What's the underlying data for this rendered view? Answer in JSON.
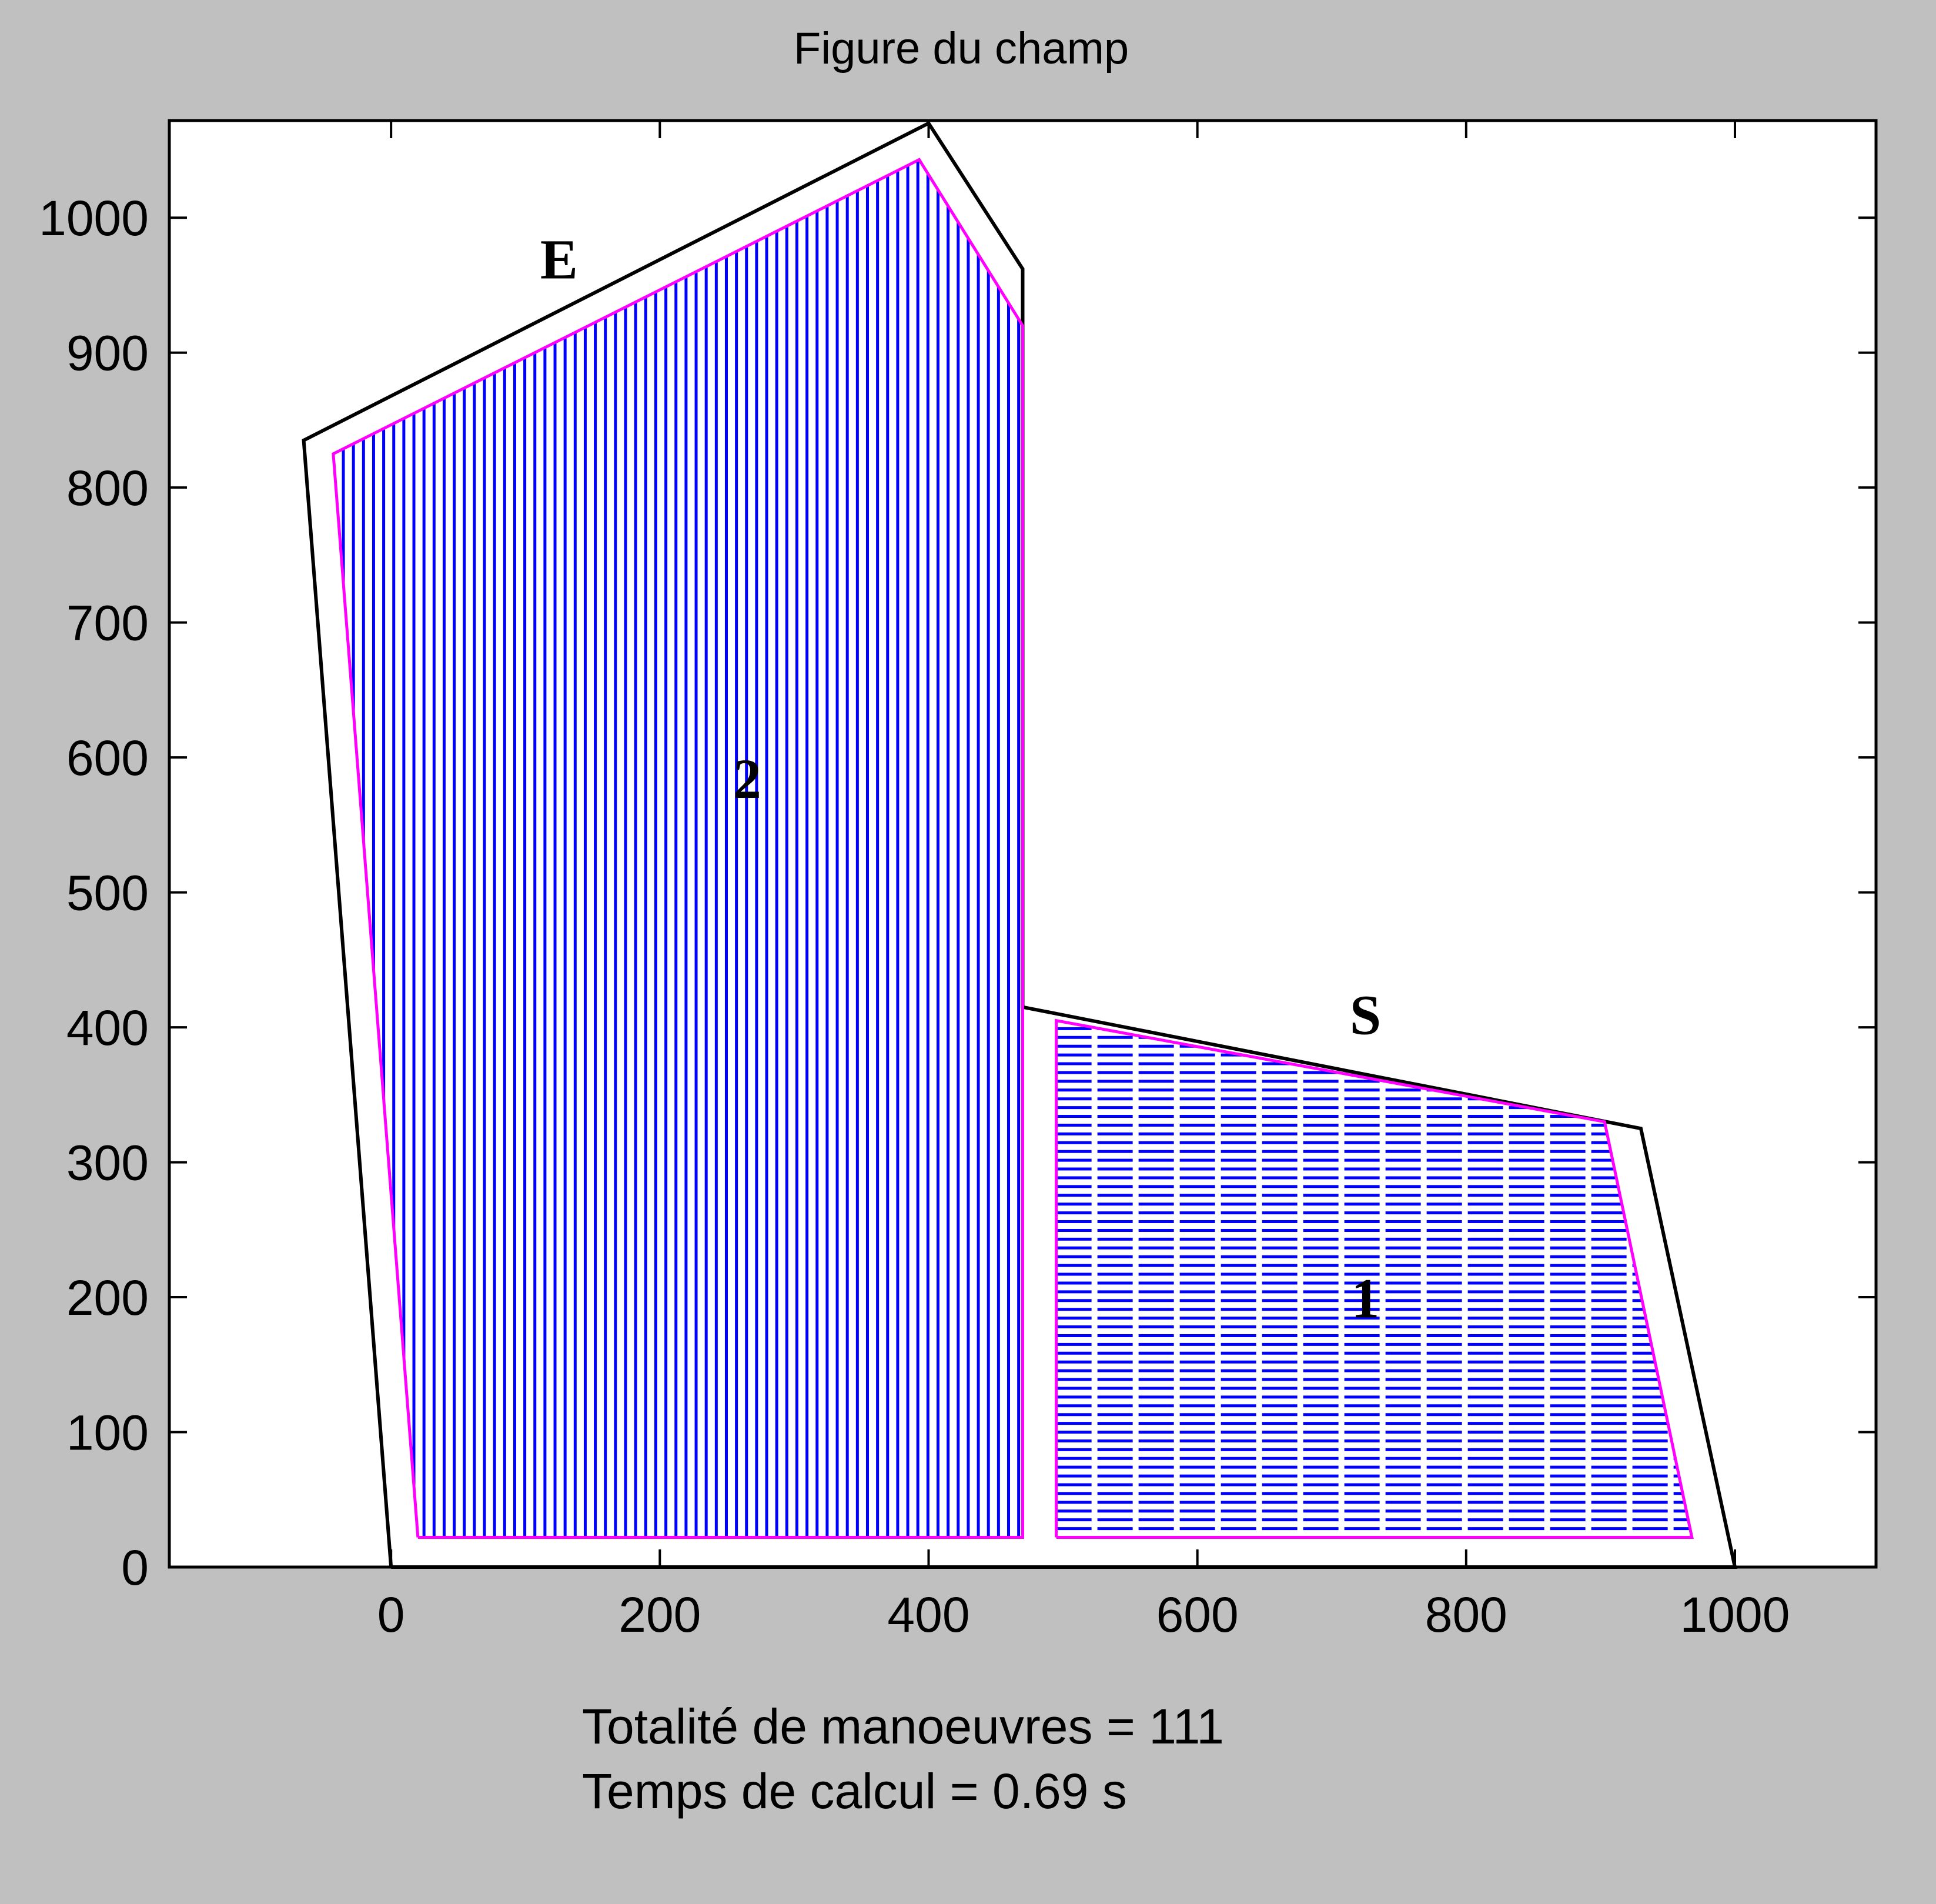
{
  "window": {
    "title": "Figure du champ"
  },
  "footer": {
    "total_maneuvers": "Totalité de manoeuvres = 111",
    "compute_time": "Temps de calcul = 0.69 s"
  },
  "colors": {
    "background": "#c0c0c0",
    "plot_bg": "#ffffff",
    "boundary": "#000000",
    "working_area": "#ff00ff",
    "passes": "#0000ff"
  },
  "chart_data": {
    "type": "line",
    "title": "Figure du champ",
    "xlabel": "",
    "ylabel": "",
    "xlim": [
      -165,
      1105
    ],
    "ylim": [
      0,
      1072
    ],
    "xticks": [
      0,
      200,
      400,
      600,
      800,
      1000
    ],
    "yticks": [
      0,
      100,
      200,
      300,
      400,
      500,
      600,
      700,
      800,
      900,
      1000
    ],
    "xtick_labels": [
      "0",
      "200",
      "400",
      "600",
      "800",
      "1000"
    ],
    "ytick_labels": [
      "0",
      "100",
      "200",
      "300",
      "400",
      "500",
      "600",
      "700",
      "800",
      "900",
      "1000"
    ],
    "grid": false,
    "series": [
      {
        "role": "field-boundary",
        "color": "#000000",
        "points": [
          [
            0,
            0
          ],
          [
            -65,
            835
          ],
          [
            400,
            1070
          ],
          [
            470,
            962
          ],
          [
            470,
            415
          ],
          [
            930,
            325
          ],
          [
            1000,
            0
          ],
          [
            0,
            0
          ]
        ]
      },
      {
        "role": "work-area-2",
        "color": "#ff00ff",
        "points": [
          [
            20,
            22
          ],
          [
            -43,
            825
          ],
          [
            393,
            1043
          ],
          [
            470,
            920
          ],
          [
            470,
            22
          ],
          [
            20,
            22
          ]
        ]
      },
      {
        "role": "work-area-1",
        "color": "#ff00ff",
        "points": [
          [
            495,
            22
          ],
          [
            495,
            405
          ],
          [
            903,
            330
          ],
          [
            968,
            22
          ],
          [
            495,
            22
          ]
        ]
      }
    ],
    "fills": [
      {
        "label": "2",
        "orientation": "vertical",
        "spacing": 7.5,
        "color": "#0000ff",
        "label_pos": [
          265,
          570
        ]
      },
      {
        "label": "1",
        "orientation": "horizontal",
        "spacing": 6.5,
        "color": "#0000ff",
        "label_pos": [
          725,
          185
        ]
      }
    ],
    "annotations": [
      {
        "text": "E",
        "x": 125,
        "y": 955
      },
      {
        "text": "S",
        "x": 725,
        "y": 395
      }
    ]
  }
}
